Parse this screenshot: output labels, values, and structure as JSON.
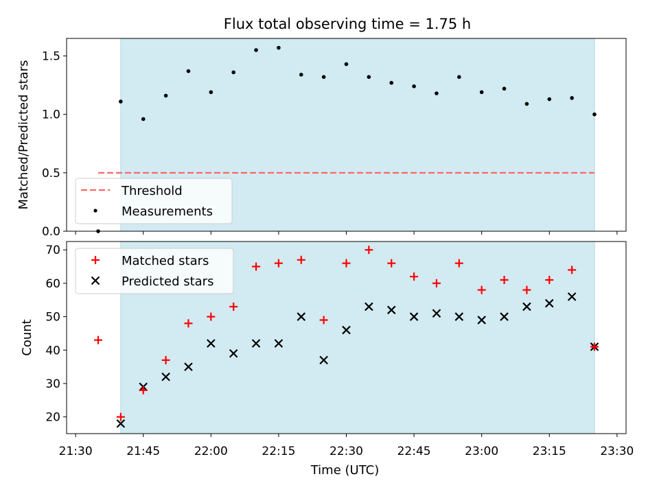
{
  "figure": {
    "title": "Flux total observing time = 1.75 h"
  },
  "colors": {
    "shade": "#add8e6",
    "threshold": "#ff6666",
    "matched": "#ff0000",
    "predicted": "#000000",
    "measurement": "#000000"
  },
  "chart_data": [
    {
      "type": "scatter",
      "title": "Flux total observing time = 1.75 h",
      "xlabel": "",
      "ylabel": "Matched/Predicted stars",
      "ylim": [
        0,
        1.65
      ],
      "yticks": [
        "0.0",
        "0.5",
        "1.0",
        "1.5"
      ],
      "x_range": [
        "21:28",
        "23:32"
      ],
      "shaded_interval": [
        "21:40",
        "23:25"
      ],
      "threshold": {
        "name": "Threshold",
        "value": 0.5,
        "x_start": "21:35",
        "x_end": "23:25"
      },
      "legend_position": "lower-left",
      "series": [
        {
          "name": "Measurements",
          "marker": "dot",
          "x": [
            "21:35",
            "21:40",
            "21:45",
            "21:50",
            "21:55",
            "22:00",
            "22:05",
            "22:10",
            "22:15",
            "22:20",
            "22:25",
            "22:30",
            "22:35",
            "22:40",
            "22:45",
            "22:50",
            "22:55",
            "23:00",
            "23:05",
            "23:10",
            "23:15",
            "23:20",
            "23:25"
          ],
          "y": [
            0.0,
            1.11,
            0.96,
            1.16,
            1.37,
            1.19,
            1.36,
            1.55,
            1.57,
            1.34,
            1.32,
            1.43,
            1.32,
            1.27,
            1.24,
            1.18,
            1.32,
            1.19,
            1.22,
            1.09,
            1.13,
            1.14,
            1.0
          ]
        }
      ]
    },
    {
      "type": "scatter",
      "xlabel": "Time (UTC)",
      "ylabel": "Count",
      "ylim": [
        15,
        72.5
      ],
      "yticks": [
        "20",
        "30",
        "40",
        "50",
        "60",
        "70"
      ],
      "x_range": [
        "21:28",
        "23:32"
      ],
      "xticks": [
        "21:30",
        "21:45",
        "22:00",
        "22:15",
        "22:30",
        "22:45",
        "23:00",
        "23:15",
        "23:30"
      ],
      "shaded_interval": [
        "21:40",
        "23:25"
      ],
      "legend_position": "upper-left",
      "series": [
        {
          "name": "Matched stars",
          "marker": "plus",
          "x": [
            "21:35",
            "21:40",
            "21:45",
            "21:50",
            "21:55",
            "22:00",
            "22:05",
            "22:10",
            "22:15",
            "22:20",
            "22:25",
            "22:30",
            "22:35",
            "22:40",
            "22:45",
            "22:50",
            "22:55",
            "23:00",
            "23:05",
            "23:10",
            "23:15",
            "23:20",
            "23:25"
          ],
          "y": [
            43,
            20,
            28,
            37,
            48,
            50,
            53,
            65,
            66,
            67,
            49,
            66,
            70,
            66,
            62,
            60,
            66,
            58,
            61,
            58,
            61,
            64,
            41
          ]
        },
        {
          "name": "Predicted stars",
          "marker": "x",
          "x": [
            "21:40",
            "21:45",
            "21:50",
            "21:55",
            "22:00",
            "22:05",
            "22:10",
            "22:15",
            "22:20",
            "22:25",
            "22:30",
            "22:35",
            "22:40",
            "22:45",
            "22:50",
            "22:55",
            "23:00",
            "23:05",
            "23:10",
            "23:15",
            "23:20",
            "23:25"
          ],
          "y": [
            18,
            29,
            32,
            35,
            42,
            39,
            42,
            42,
            50,
            37,
            46,
            53,
            52,
            50,
            51,
            50,
            49,
            50,
            53,
            54,
            56,
            41
          ]
        }
      ]
    }
  ]
}
